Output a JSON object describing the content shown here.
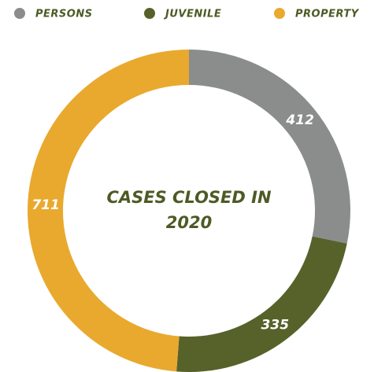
{
  "chart_data": {
    "type": "pie",
    "title": "CASES CLOSED IN 2020",
    "categories": [
      "PERSONS",
      "JUVENILE",
      "PROPERTY"
    ],
    "values": [
      412,
      335,
      711
    ],
    "colors": [
      "#8a8d8c",
      "#56622a",
      "#e9a92e"
    ],
    "legend": "top"
  }
}
